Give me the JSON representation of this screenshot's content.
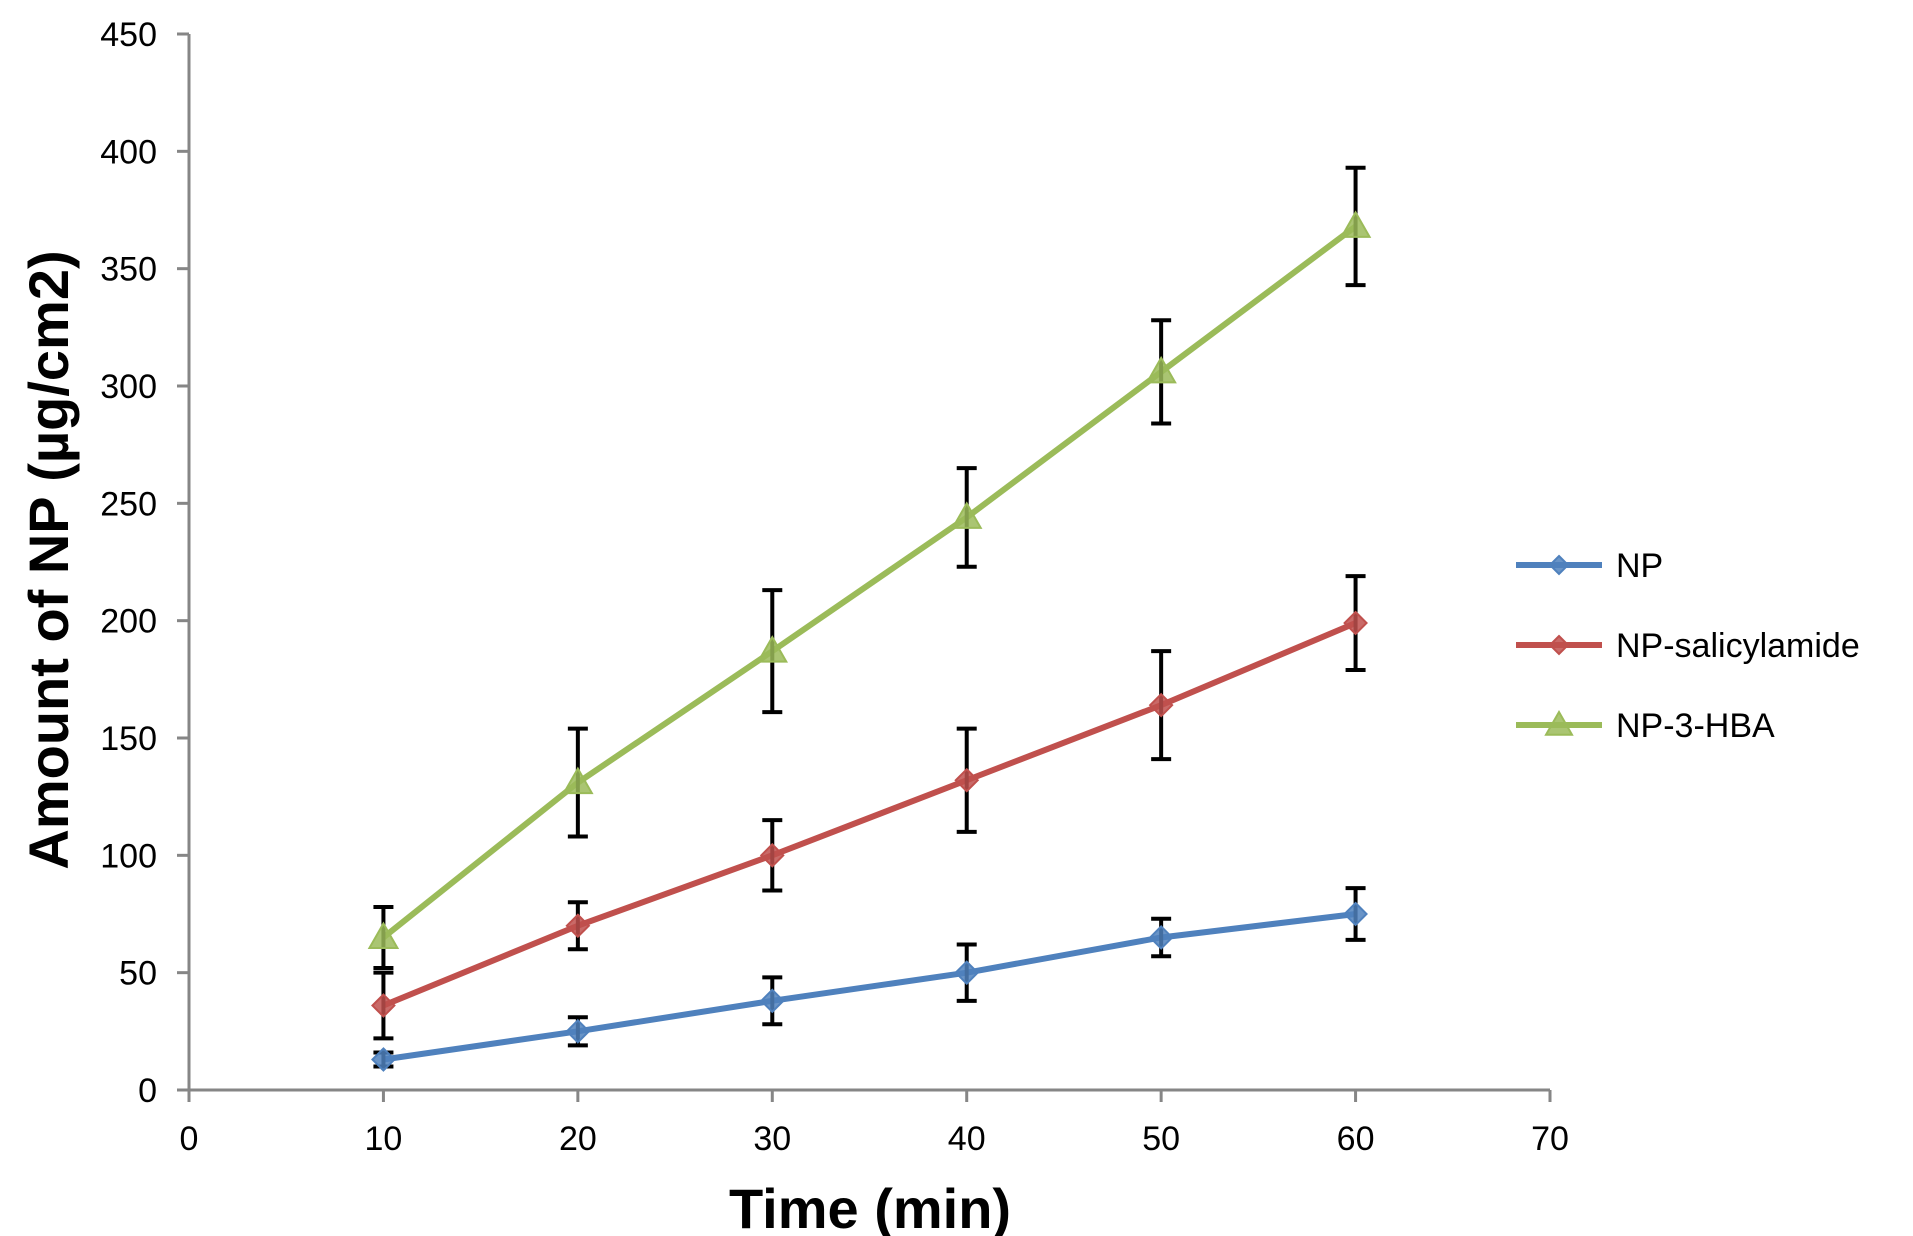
{
  "chart_data": {
    "type": "line",
    "title": "",
    "xlabel": "Time (min)",
    "ylabel": "Amount of NP (µg/cm2)",
    "xlim": [
      0,
      70
    ],
    "ylim": [
      0,
      450
    ],
    "xticks": [
      0,
      10,
      20,
      30,
      40,
      50,
      60,
      70
    ],
    "yticks": [
      0,
      50,
      100,
      150,
      200,
      250,
      300,
      350,
      400,
      450
    ],
    "grid": false,
    "legend_position": "right",
    "x": [
      10,
      20,
      30,
      40,
      50,
      60
    ],
    "series": [
      {
        "name": "NP",
        "color": "#4F81BD",
        "marker": "diamond",
        "values": [
          13,
          25,
          38,
          50,
          65,
          75
        ],
        "errors": [
          3,
          6,
          10,
          12,
          8,
          11
        ]
      },
      {
        "name": "NP-salicylamide",
        "color": "#C0504D",
        "marker": "diamond",
        "values": [
          36,
          70,
          100,
          132,
          164,
          199
        ],
        "errors": [
          14,
          10,
          15,
          22,
          23,
          20
        ]
      },
      {
        "name": "NP-3-HBA",
        "color": "#9BBB59",
        "marker": "triangle",
        "values": [
          65,
          131,
          187,
          244,
          306,
          368
        ],
        "errors": [
          13,
          23,
          26,
          21,
          22,
          25
        ]
      }
    ]
  }
}
